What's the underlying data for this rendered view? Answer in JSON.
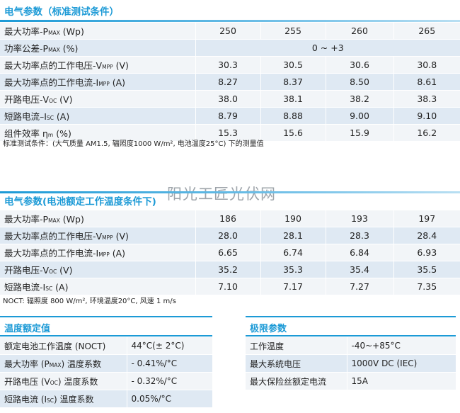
{
  "stc": {
    "title": "电气参数（标准测试条件）",
    "rows": [
      {
        "label": "最大功率-P",
        "sub": "MAX",
        "unit": " (Wp)",
        "values": [
          "250",
          "255",
          "260",
          "265"
        ]
      },
      {
        "label": "功率公差-P",
        "sub": "MAX",
        "unit": " (%)",
        "merged": "0 ~ +3"
      },
      {
        "label": "最大功率点的工作电压-V",
        "sub": "MPP",
        "unit": " (V)",
        "values": [
          "30.3",
          "30.5",
          "30.6",
          "30.8"
        ]
      },
      {
        "label": "最大功率点的工作电流-I",
        "sub": "MPP",
        "unit": " (A)",
        "values": [
          "8.27",
          "8.37",
          "8.50",
          "8.61"
        ]
      },
      {
        "label": "开路电压-V",
        "sub": "OC",
        "unit": " (V)",
        "values": [
          "38.0",
          "38.1",
          "38.2",
          "38.3"
        ]
      },
      {
        "label": "短路电流–I",
        "sub": "SC",
        "unit": " (A)",
        "values": [
          "8.79",
          "8.88",
          "9.00",
          "9.10"
        ]
      },
      {
        "label": "组件效率 η",
        "sub": "m",
        "unit": " (%)",
        "values": [
          "15.3",
          "15.6",
          "15.9",
          "16.2"
        ]
      }
    ],
    "note": "标准测试条件：(大气质量 AM1.5, 辐照度1000 W/m², 电池温度25°C) 下的测量值"
  },
  "watermark": "阳光工匠光伏网",
  "noct": {
    "title": "电气参数(电池额定工作温度条件下)",
    "rows": [
      {
        "label": "最大功率-P",
        "sub": "MAX",
        "unit": " (Wp)",
        "values": [
          "186",
          "190",
          "193",
          "197"
        ]
      },
      {
        "label": "最大功率点的工作电压-V",
        "sub": "MPP",
        "unit": " (V)",
        "values": [
          "28.0",
          "28.1",
          "28.3",
          "28.4"
        ]
      },
      {
        "label": "最大功率点的工作电流-I",
        "sub": "MPP",
        "unit": " (A)",
        "values": [
          "6.65",
          "6.74",
          "6.84",
          "6.93"
        ]
      },
      {
        "label": "开路电压-V",
        "sub": "OC",
        "unit": " (V)",
        "values": [
          "35.2",
          "35.3",
          "35.4",
          "35.5"
        ]
      },
      {
        "label": "短路电流-I",
        "sub": "SC",
        "unit": " (A)",
        "values": [
          "7.10",
          "7.17",
          "7.27",
          "7.35"
        ]
      }
    ],
    "note": "NOCT: 辐照度 800 W/m², 环境温度20°C, 风速 1 m/s"
  },
  "temp": {
    "title": "温度额定值",
    "rows": [
      {
        "label": "额定电池工作温度 (NOCT)",
        "value": "44°C(± 2°C)"
      },
      {
        "label": "最大功率 (P",
        "sub": "MAX",
        "unit": ") 温度系数",
        "value": "- 0.41%/°C"
      },
      {
        "label": "开路电压 (V",
        "sub": "OC",
        "unit": ") 温度系数",
        "value": "- 0.32%/°C"
      },
      {
        "label": "短路电流 (I",
        "sub": "SC",
        "unit": ") 温度系数",
        "value": "0.05%/°C"
      }
    ]
  },
  "limits": {
    "title": "极限参数",
    "rows": [
      {
        "label": "工作温度",
        "value": "-40~+85°C"
      },
      {
        "label": "最大系统电压",
        "value": "1000V DC (IEC)"
      },
      {
        "label": "最大保险丝额定电流",
        "value": "15A"
      }
    ]
  }
}
